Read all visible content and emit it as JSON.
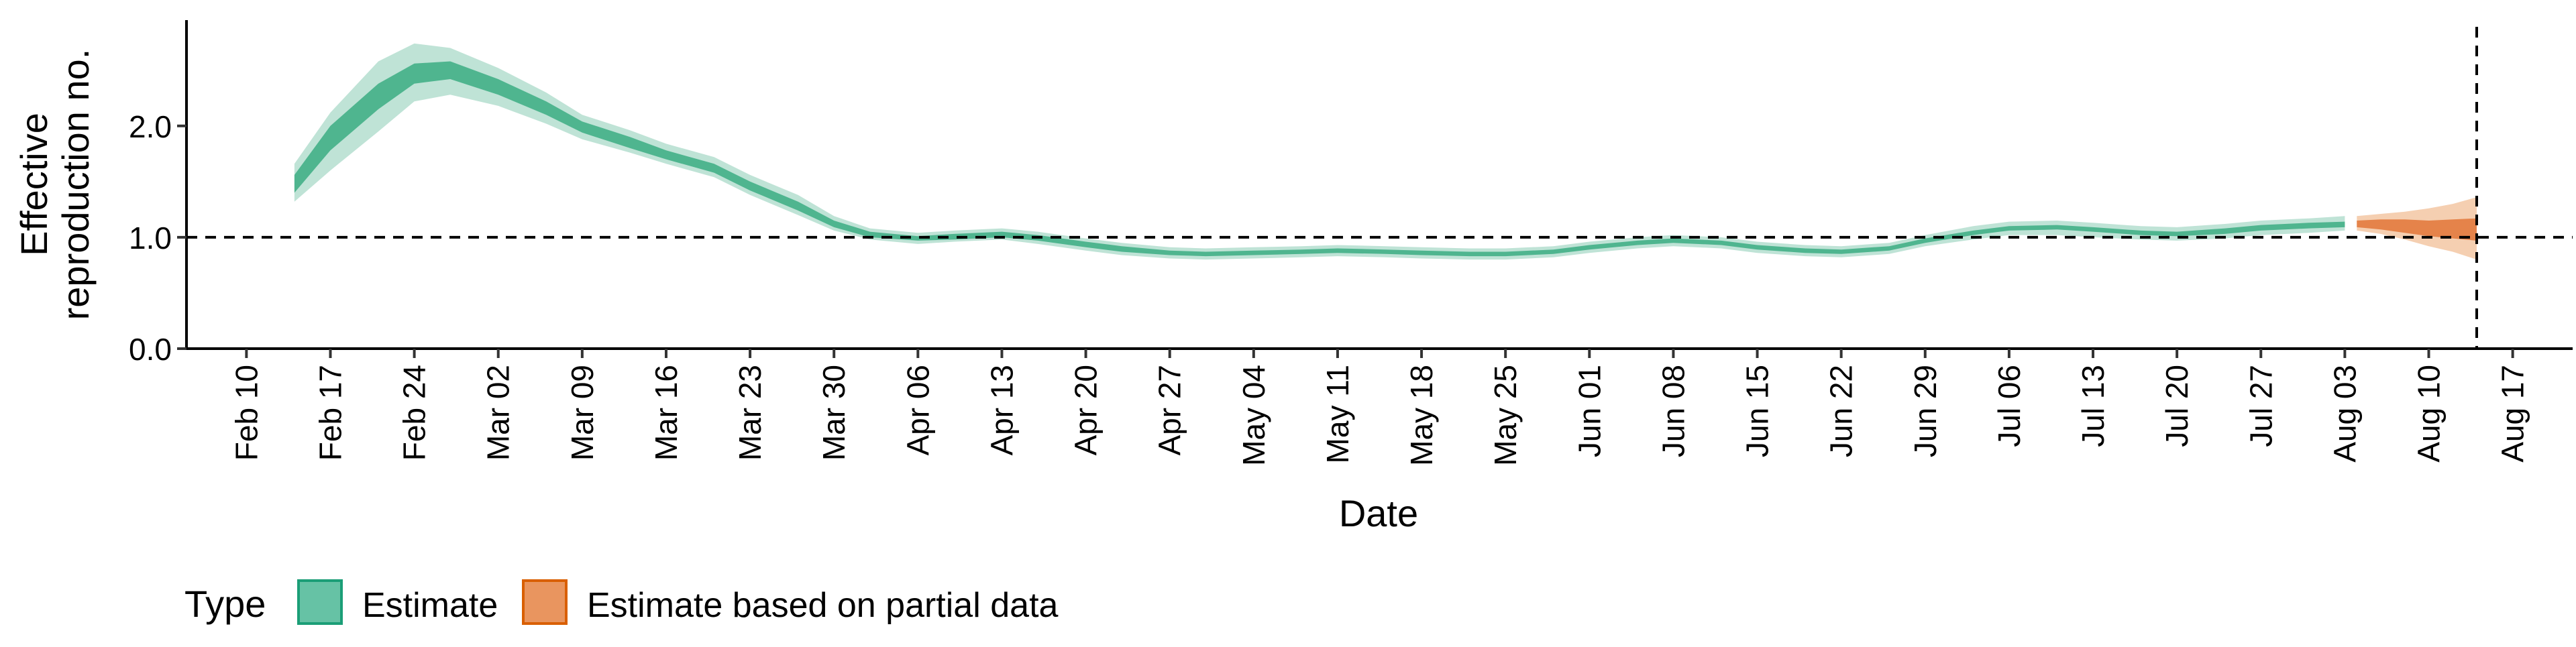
{
  "chart_data": {
    "type": "area",
    "xlabel": "Date",
    "ylabel_lines": [
      "Effective",
      "reproduction no."
    ],
    "x_range": [
      "2020-02-05",
      "2020-08-22"
    ],
    "y_range": [
      0,
      2.95
    ],
    "y_ticks": [
      {
        "value": 0,
        "label": "0.0"
      },
      {
        "value": 1,
        "label": "1.0"
      },
      {
        "value": 2,
        "label": "2.0"
      }
    ],
    "x_ticks": [
      {
        "date": "2020-02-10",
        "label": "Feb 10"
      },
      {
        "date": "2020-02-17",
        "label": "Feb 17"
      },
      {
        "date": "2020-02-24",
        "label": "Feb 24"
      },
      {
        "date": "2020-03-02",
        "label": "Mar 02"
      },
      {
        "date": "2020-03-09",
        "label": "Mar 09"
      },
      {
        "date": "2020-03-16",
        "label": "Mar 16"
      },
      {
        "date": "2020-03-23",
        "label": "Mar 23"
      },
      {
        "date": "2020-03-30",
        "label": "Mar 30"
      },
      {
        "date": "2020-04-06",
        "label": "Apr 06"
      },
      {
        "date": "2020-04-13",
        "label": "Apr 13"
      },
      {
        "date": "2020-04-20",
        "label": "Apr 20"
      },
      {
        "date": "2020-04-27",
        "label": "Apr 27"
      },
      {
        "date": "2020-05-04",
        "label": "May 04"
      },
      {
        "date": "2020-05-11",
        "label": "May 11"
      },
      {
        "date": "2020-05-18",
        "label": "May 18"
      },
      {
        "date": "2020-05-25",
        "label": "May 25"
      },
      {
        "date": "2020-06-01",
        "label": "Jun 01"
      },
      {
        "date": "2020-06-08",
        "label": "Jun 08"
      },
      {
        "date": "2020-06-15",
        "label": "Jun 15"
      },
      {
        "date": "2020-06-22",
        "label": "Jun 22"
      },
      {
        "date": "2020-06-29",
        "label": "Jun 29"
      },
      {
        "date": "2020-07-06",
        "label": "Jul 06"
      },
      {
        "date": "2020-07-13",
        "label": "Jul 13"
      },
      {
        "date": "2020-07-20",
        "label": "Jul 20"
      },
      {
        "date": "2020-07-27",
        "label": "Jul 27"
      },
      {
        "date": "2020-08-03",
        "label": "Aug 03"
      },
      {
        "date": "2020-08-10",
        "label": "Aug 10"
      },
      {
        "date": "2020-08-17",
        "label": "Aug 17"
      }
    ],
    "reference_lines": {
      "horizontal_y": 1.0,
      "vertical_date": "2020-08-14"
    },
    "legend": {
      "title": "Type",
      "position": "bottom-left",
      "entries": [
        {
          "label": "Estimate",
          "fill": "#66c2a5",
          "stroke": "#1b9e77"
        },
        {
          "label": "Estimate based on partial data",
          "fill": "#e9955f",
          "stroke": "#d95f02"
        }
      ]
    },
    "colors": {
      "estimate_outer": "#bfe3d6",
      "estimate_inner": "#4fb58f",
      "partial_outer": "#f5cfb1",
      "partial_inner": "#e5834a"
    },
    "series": [
      {
        "name": "Estimate",
        "x": [
          "2020-02-14",
          "2020-02-17",
          "2020-02-21",
          "2020-02-24",
          "2020-02-27",
          "2020-03-02",
          "2020-03-06",
          "2020-03-09",
          "2020-03-13",
          "2020-03-16",
          "2020-03-20",
          "2020-03-23",
          "2020-03-27",
          "2020-03-30",
          "2020-04-02",
          "2020-04-06",
          "2020-04-09",
          "2020-04-13",
          "2020-04-16",
          "2020-04-20",
          "2020-04-23",
          "2020-04-27",
          "2020-04-30",
          "2020-05-04",
          "2020-05-08",
          "2020-05-11",
          "2020-05-15",
          "2020-05-18",
          "2020-05-22",
          "2020-05-25",
          "2020-05-29",
          "2020-06-01",
          "2020-06-05",
          "2020-06-08",
          "2020-06-12",
          "2020-06-15",
          "2020-06-19",
          "2020-06-22",
          "2020-06-26",
          "2020-06-29",
          "2020-07-03",
          "2020-07-06",
          "2020-07-10",
          "2020-07-13",
          "2020-07-17",
          "2020-07-20",
          "2020-07-24",
          "2020-07-27",
          "2020-07-31",
          "2020-08-03"
        ],
        "lower90": [
          1.32,
          1.6,
          1.95,
          2.22,
          2.28,
          2.18,
          2.02,
          1.88,
          1.76,
          1.66,
          1.54,
          1.38,
          1.2,
          1.06,
          0.98,
          0.94,
          0.96,
          0.98,
          0.94,
          0.88,
          0.84,
          0.81,
          0.8,
          0.81,
          0.82,
          0.83,
          0.82,
          0.81,
          0.8,
          0.8,
          0.82,
          0.86,
          0.9,
          0.92,
          0.9,
          0.86,
          0.83,
          0.82,
          0.85,
          0.92,
          0.98,
          1.02,
          1.02,
          1.0,
          0.98,
          0.97,
          0.99,
          1.02,
          1.04,
          1.06
        ],
        "lower50": [
          1.4,
          1.78,
          2.15,
          2.38,
          2.42,
          2.28,
          2.1,
          1.94,
          1.8,
          1.7,
          1.58,
          1.42,
          1.24,
          1.09,
          1.0,
          0.97,
          0.98,
          1.0,
          0.97,
          0.91,
          0.87,
          0.84,
          0.83,
          0.84,
          0.85,
          0.86,
          0.85,
          0.84,
          0.83,
          0.83,
          0.85,
          0.89,
          0.93,
          0.95,
          0.93,
          0.89,
          0.86,
          0.85,
          0.88,
          0.95,
          1.02,
          1.06,
          1.07,
          1.05,
          1.02,
          1.01,
          1.03,
          1.06,
          1.08,
          1.09
        ],
        "upper50": [
          1.56,
          2.0,
          2.38,
          2.56,
          2.58,
          2.42,
          2.22,
          2.04,
          1.9,
          1.78,
          1.66,
          1.5,
          1.32,
          1.15,
          1.05,
          1.01,
          1.03,
          1.05,
          1.02,
          0.96,
          0.92,
          0.88,
          0.87,
          0.88,
          0.89,
          0.9,
          0.89,
          0.88,
          0.87,
          0.87,
          0.89,
          0.93,
          0.97,
          0.99,
          0.97,
          0.93,
          0.9,
          0.89,
          0.92,
          0.99,
          1.06,
          1.1,
          1.11,
          1.09,
          1.06,
          1.05,
          1.08,
          1.11,
          1.13,
          1.14
        ],
        "upper90": [
          1.66,
          2.12,
          2.58,
          2.74,
          2.7,
          2.52,
          2.3,
          2.1,
          1.96,
          1.84,
          1.72,
          1.56,
          1.38,
          1.19,
          1.08,
          1.04,
          1.06,
          1.08,
          1.05,
          0.99,
          0.95,
          0.91,
          0.9,
          0.91,
          0.92,
          0.93,
          0.92,
          0.91,
          0.9,
          0.9,
          0.92,
          0.96,
          1.0,
          1.02,
          1.0,
          0.96,
          0.93,
          0.92,
          0.95,
          1.02,
          1.1,
          1.14,
          1.15,
          1.13,
          1.1,
          1.09,
          1.12,
          1.15,
          1.17,
          1.19
        ]
      },
      {
        "name": "Estimate based on partial data",
        "x": [
          "2020-08-04",
          "2020-08-06",
          "2020-08-08",
          "2020-08-10",
          "2020-08-12",
          "2020-08-14"
        ],
        "lower90": [
          1.06,
          1.03,
          0.98,
          0.92,
          0.87,
          0.8
        ],
        "lower50": [
          1.09,
          1.07,
          1.04,
          1.01,
          0.99,
          0.97
        ],
        "upper50": [
          1.15,
          1.16,
          1.16,
          1.15,
          1.16,
          1.17
        ],
        "upper90": [
          1.19,
          1.21,
          1.23,
          1.26,
          1.3,
          1.36
        ]
      }
    ]
  }
}
